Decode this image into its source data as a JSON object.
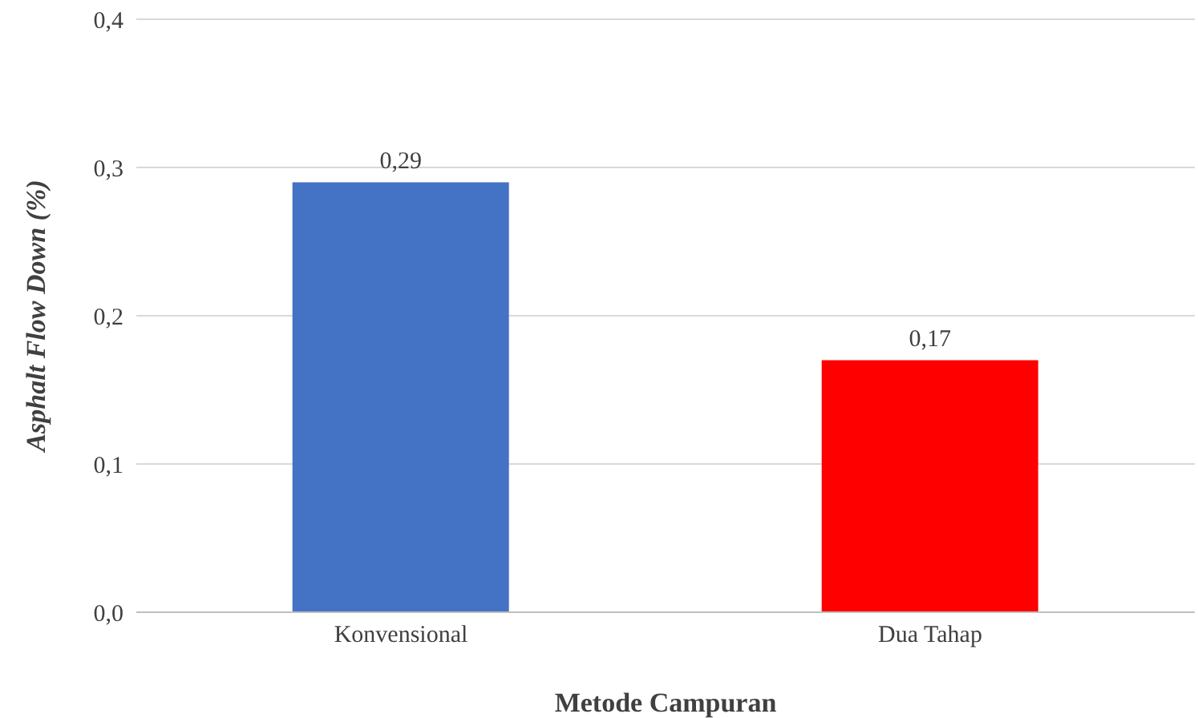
{
  "chart_data": {
    "type": "bar",
    "xlabel": "Metode Campuran",
    "ylabel": "Asphalt Flow Down (%)",
    "categories": [
      "Konvensional",
      "Dua Tahap"
    ],
    "values": [
      0.29,
      0.17
    ],
    "colors": [
      "#4472c4",
      "#ff0000"
    ],
    "value_labels": [
      "0,29",
      "0,17"
    ],
    "ylim": [
      0,
      0.4
    ],
    "yticks": [
      {
        "value": 0,
        "label": "0,0"
      },
      {
        "value": 0.1,
        "label": "0,1"
      },
      {
        "value": 0.2,
        "label": "0,2"
      },
      {
        "value": 0.3,
        "label": "0,3"
      },
      {
        "value": 0.4,
        "label": "0,4"
      }
    ],
    "grid": "y",
    "legend": false
  }
}
